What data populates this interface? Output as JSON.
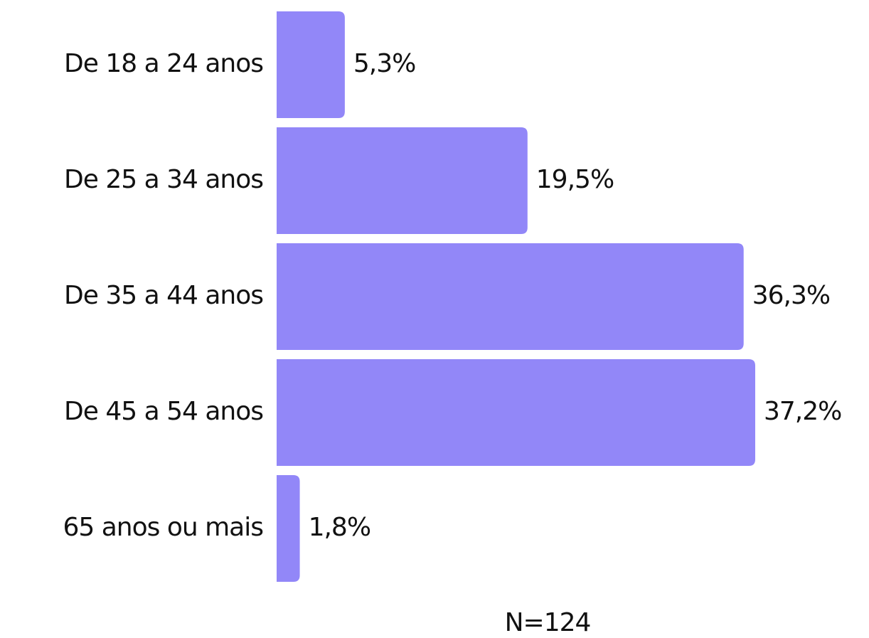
{
  "chart_data": {
    "type": "bar",
    "orientation": "horizontal",
    "categories": [
      "De 18 a 24 anos",
      "De 25 a 34 anos",
      "De 35 a 44 anos",
      "De 45 a 54 anos",
      "65 anos ou mais"
    ],
    "values": [
      5.3,
      19.5,
      36.3,
      37.2,
      1.8
    ],
    "value_labels": [
      "5,3%",
      "19,5%",
      "36,3%",
      "37,2%",
      "1,8%"
    ],
    "color": "#9287f8",
    "annotation": "N=124"
  }
}
